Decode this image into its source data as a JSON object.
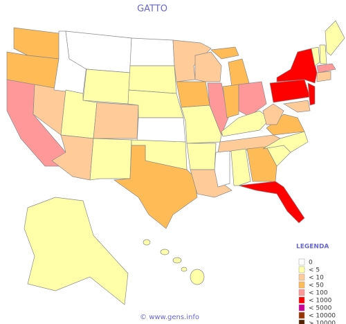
{
  "title": "GATTO",
  "legend": {
    "title": "LEGENDA",
    "items": [
      {
        "label": "0",
        "color": "#ffffff"
      },
      {
        "label": "< 5",
        "color": "#ffffaa"
      },
      {
        "label": "< 10",
        "color": "#ffcc99"
      },
      {
        "label": "< 50",
        "color": "#ffbb55"
      },
      {
        "label": "< 100",
        "color": "#ff9999"
      },
      {
        "label": "< 1000",
        "color": "#ff0000"
      },
      {
        "label": "< 5000",
        "color": "#cc0099"
      },
      {
        "label": "< 10000",
        "color": "#993300"
      },
      {
        "label": "> 10000",
        "color": "#552200"
      }
    ]
  },
  "footer": "© www.gens.info"
}
